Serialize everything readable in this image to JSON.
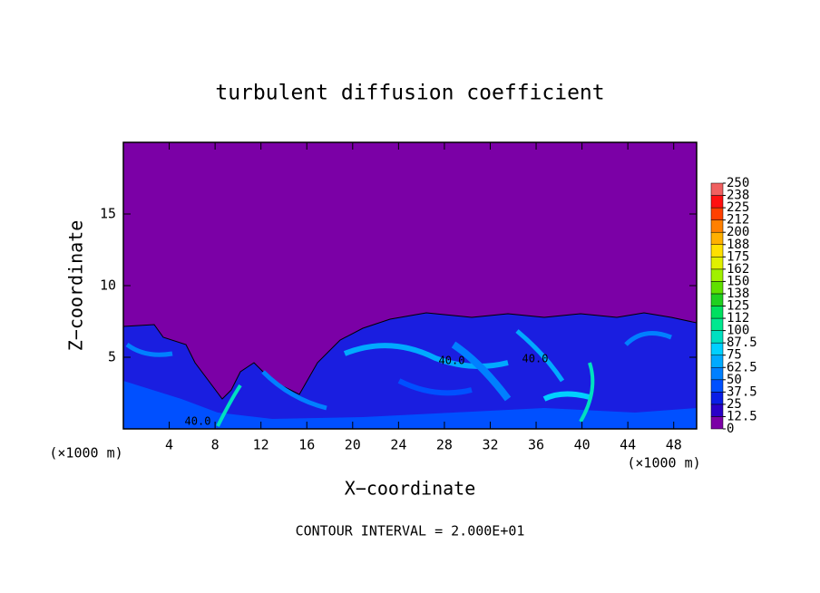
{
  "chart_data": {
    "type": "contour",
    "title": "turbulent diffusion coefficient",
    "x_label": "X−coordinate",
    "y_label": "Z−coordinate",
    "x_unit_left": "(×1000 m)",
    "x_unit_right": "(×1000 m)",
    "footer": "CONTOUR INTERVAL = 2.000E+01",
    "xlim": [
      0,
      50
    ],
    "xticks": [
      4,
      8,
      12,
      16,
      20,
      24,
      28,
      32,
      36,
      40,
      44,
      48
    ],
    "ylim": [
      0,
      20
    ],
    "yticks": [
      5,
      10,
      15
    ],
    "colorbar": {
      "lim": [
        0,
        250
      ],
      "ticks": [
        0,
        12.5,
        25,
        37.5,
        50,
        62.5,
        75,
        87.5,
        100,
        {
          "value": 112.5,
          "label": "112"
        },
        125,
        {
          "value": 137.5,
          "label": "138"
        },
        150,
        {
          "value": 162.5,
          "label": "162"
        },
        175,
        {
          "value": 187.5,
          "label": "188"
        },
        200,
        {
          "value": 212.5,
          "label": "212"
        },
        225,
        {
          "value": 237.5,
          "label": "238"
        },
        250
      ],
      "colors": [
        "#7b00a6",
        "#2a00c8",
        "#0a1ee6",
        "#0050ff",
        "#0080ff",
        "#00aaff",
        "#00d0ff",
        "#00e0c0",
        "#00e890",
        "#00e060",
        "#20d020",
        "#60e000",
        "#a0f000",
        "#e0f000",
        "#ffe000",
        "#ffb000",
        "#ff8000",
        "#ff4000",
        "#ff1010",
        "#f06060"
      ]
    },
    "annotations": [
      "40.0",
      "40.0",
      "40.0"
    ]
  }
}
